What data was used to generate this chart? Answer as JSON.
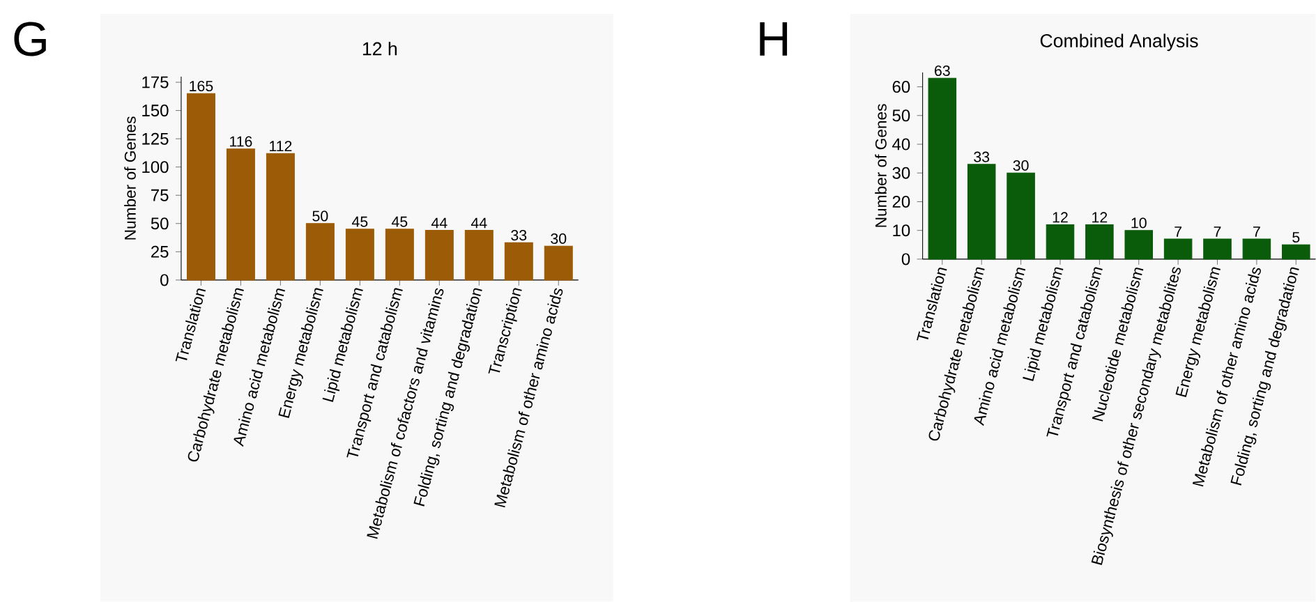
{
  "chart_data": [
    {
      "type": "bar",
      "title": "12 h",
      "ylabel": "Number of Genes",
      "annotations": [
        "G"
      ],
      "categories": [
        "Translation",
        "Carbohydrate metabolism",
        "Amino acid metabolism",
        "Energy metabolism",
        "Lipid metabolism",
        "Transport and catabolism",
        "Metabolism of cofactors and vitamins",
        "Folding, sorting and degradation",
        "Transcription",
        "Metabolism of other amino acids"
      ],
      "values": [
        165,
        116,
        112,
        50,
        45,
        45,
        44,
        44,
        33,
        30
      ],
      "color": "#9c5b06",
      "ylim": [
        0,
        180
      ],
      "yticks": [
        0,
        25,
        50,
        75,
        100,
        125,
        150,
        175
      ],
      "data_labels": true
    },
    {
      "type": "bar",
      "title": "Combined Analysis",
      "ylabel": "Number of Genes",
      "annotations": [
        "H"
      ],
      "categories": [
        "Translation",
        "Carbohydrate metabolism",
        "Amino acid metabolism",
        "Lipid metabolism",
        "Transport and catabolism",
        "Nucleotide metabolism",
        "Biosynthesis of other secondary metabolites",
        "Energy metabolism",
        "Metabolism of other amino acids",
        "Folding, sorting and degradation"
      ],
      "values": [
        63,
        33,
        30,
        12,
        12,
        10,
        7,
        7,
        7,
        5
      ],
      "color": "#0a5c0a",
      "ylim": [
        0,
        65
      ],
      "yticks": [
        0,
        10,
        20,
        30,
        40,
        50,
        60
      ],
      "data_labels": true
    }
  ]
}
